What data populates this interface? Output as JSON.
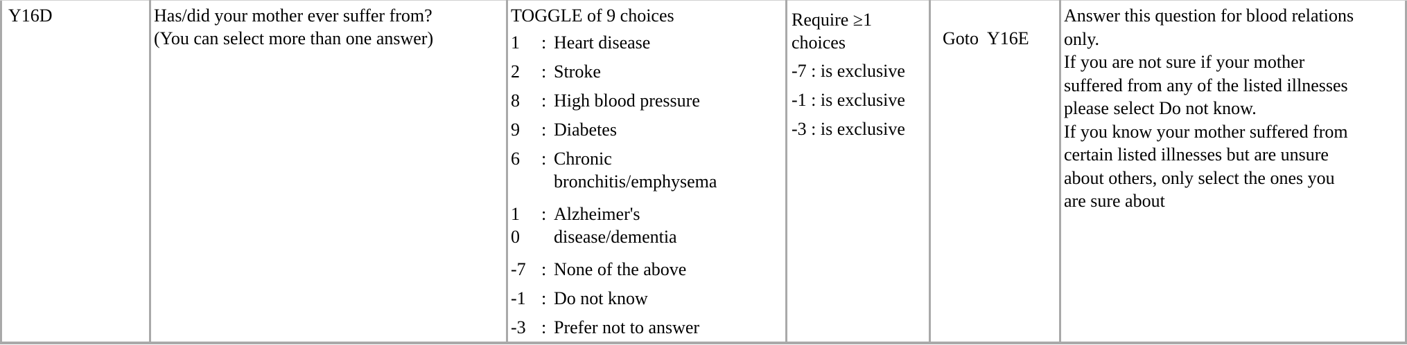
{
  "row": {
    "id": "Y16D",
    "question": {
      "line1": "Has/did your mother ever suffer from?",
      "line2": "(You can select more than one answer)"
    },
    "response": {
      "header": "TOGGLE of 9 choices",
      "choices": [
        {
          "code": "1",
          "label": "Heart disease"
        },
        {
          "code": "2",
          "label": "Stroke"
        },
        {
          "code": "8",
          "label": "High blood pressure"
        },
        {
          "code": "9",
          "label": "Diabetes"
        },
        {
          "code": "6",
          "label_line1": "Chronic",
          "label_line2": "bronchitis/emphysema"
        },
        {
          "code_line1": "1",
          "code_line2": "0",
          "label_line1": "Alzheimer's",
          "label_line2": "disease/dementia"
        },
        {
          "code": "-7",
          "label": "None of the above"
        },
        {
          "code": "-1",
          "label": "Do not know"
        },
        {
          "code": "-3",
          "label": "Prefer not to answer"
        }
      ]
    },
    "validation": {
      "line1": "Require ≥1",
      "line2": "choices",
      "rules": [
        "-7 : is exclusive",
        "-1 : is exclusive",
        "-3 : is exclusive"
      ]
    },
    "routing": "Goto  Y16E",
    "note": [
      "Answer this question for blood relations",
      "only.",
      "If you are not sure if your mother",
      "suffered from any of the listed illnesses",
      "please select Do not know.",
      "If you know your mother suffered from",
      "certain listed illnesses but are unsure",
      "about others, only select the ones you",
      "are sure about"
    ]
  }
}
